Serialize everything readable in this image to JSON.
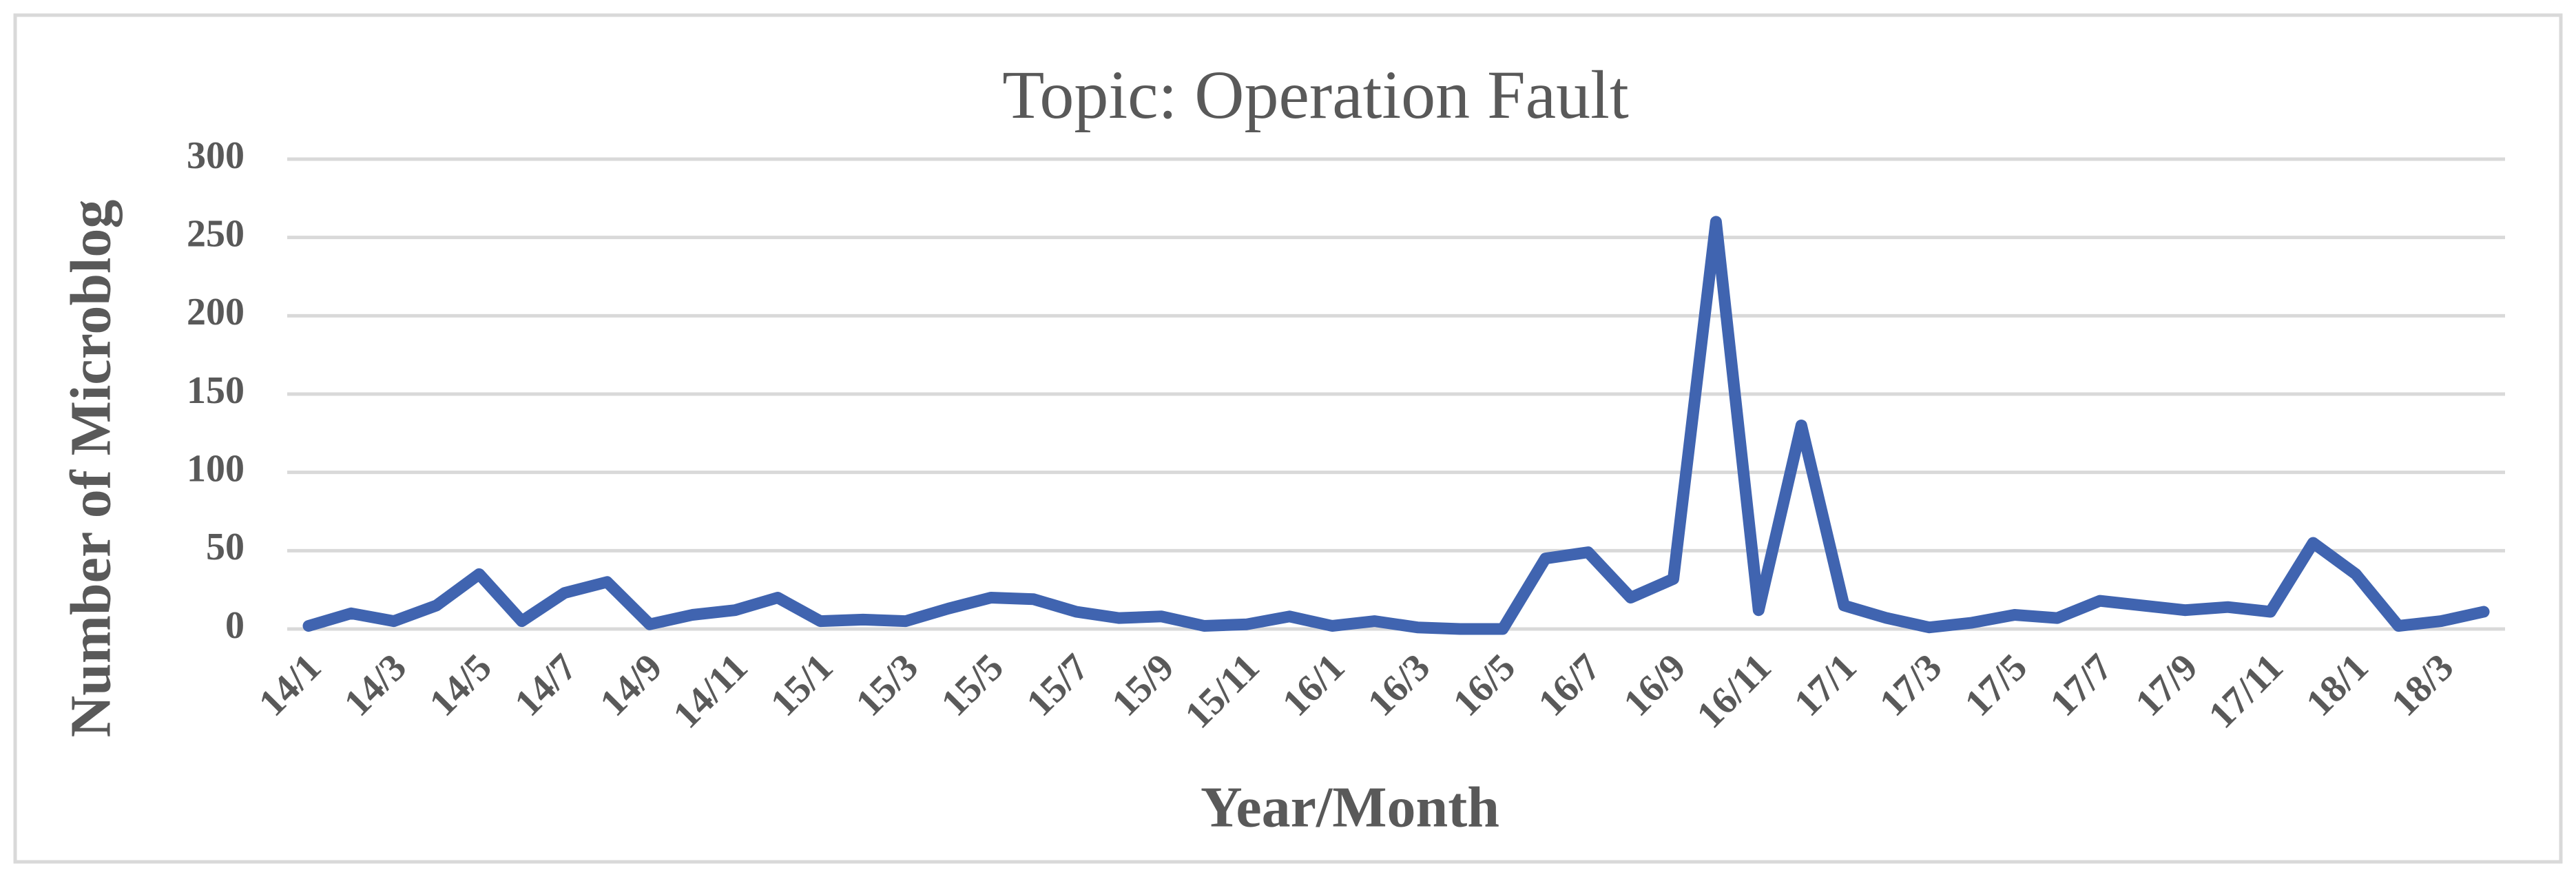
{
  "chart_data": {
    "type": "line",
    "title": "Topic: Operation Fault",
    "x_label": "Year/Month",
    "y_label": "Number of  Microblog",
    "categories": [
      "14/1",
      null,
      "14/3",
      null,
      "14/5",
      null,
      "14/7",
      null,
      "14/9",
      null,
      "14/11",
      null,
      "15/1",
      null,
      "15/3",
      null,
      "15/5",
      null,
      "15/7",
      null,
      "15/9",
      null,
      "15/11",
      null,
      "16/1",
      null,
      "16/3",
      null,
      "16/5",
      null,
      "16/7",
      null,
      "16/9",
      null,
      "16/11",
      null,
      "17/1",
      null,
      "17/3",
      null,
      "17/5",
      null,
      "17/7",
      null,
      "17/9",
      null,
      "17/11",
      null,
      "18/1",
      null,
      "18/3",
      null
    ],
    "series": [
      {
        "name": "Operation Fault",
        "color": "#4064b0",
        "values": [
          2,
          10,
          5,
          15,
          35,
          5,
          23,
          30,
          3,
          9,
          12,
          20,
          5,
          6,
          5,
          13,
          20,
          19,
          11,
          7,
          8,
          2,
          3,
          8,
          2,
          5,
          1,
          0,
          0,
          45,
          49,
          20,
          32,
          260,
          12,
          130,
          15,
          7,
          1,
          4,
          9,
          7,
          18,
          15,
          12,
          14,
          11,
          55,
          35,
          2,
          5,
          11
        ]
      }
    ],
    "ylim": [
      0,
      300
    ],
    "yticks": [
      0,
      50,
      100,
      150,
      200,
      250,
      300
    ],
    "grid": true
  }
}
